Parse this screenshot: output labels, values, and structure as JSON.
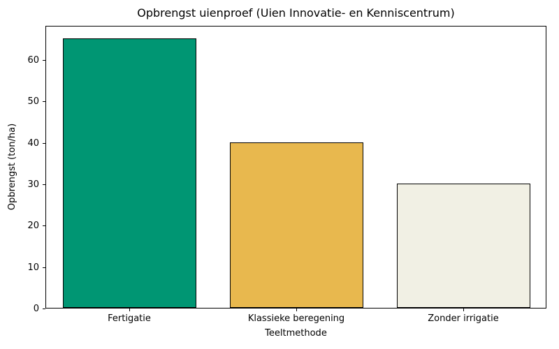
{
  "chart_data": {
    "type": "bar",
    "title": "Opbrengst uienproef (Uien Innovatie- en Kenniscentrum)",
    "xlabel": "Teeltmethode",
    "ylabel": "Opbrengst (ton/ha)",
    "categories": [
      "Fertigatie",
      "Klassieke beregening",
      "Zonder irrigatie"
    ],
    "values": [
      65,
      40,
      30
    ],
    "bar_colors": [
      "#009673",
      "#E8B84E",
      "#F1F0E4"
    ],
    "bar_edge_color": "#000000",
    "yticks": [
      0,
      10,
      20,
      30,
      40,
      50,
      60
    ],
    "ylim": [
      0,
      68.25
    ],
    "grid": false,
    "legend": null,
    "background_color": "#ffffff"
  }
}
